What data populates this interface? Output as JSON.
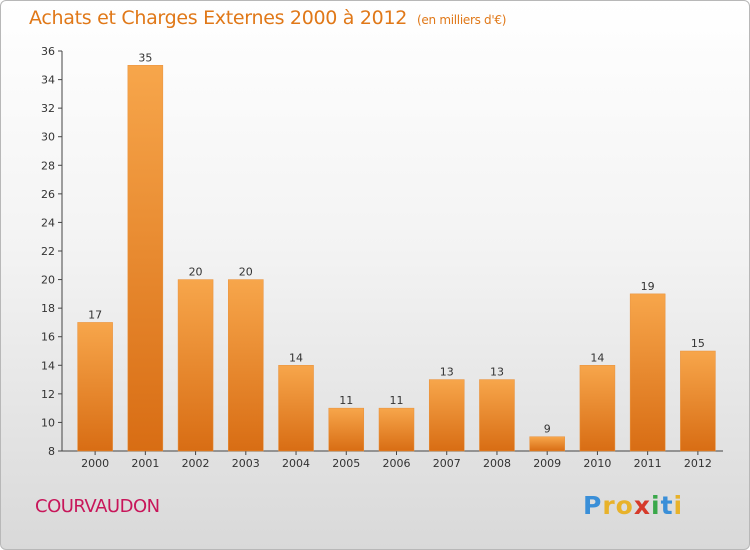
{
  "header": {
    "title": "Achats et Charges Externes 2000 à 2012",
    "unit": "(en milliers d'€)"
  },
  "footer": {
    "commune": "COURVAUDON",
    "logo_text": "Proxiti",
    "logo_letters": [
      {
        "char": "P",
        "color": "#3a8fd8"
      },
      {
        "char": "r",
        "color": "#e8b22a"
      },
      {
        "char": "o",
        "color": "#e8b22a"
      },
      {
        "char": "x",
        "color": "#d63a2a"
      },
      {
        "char": "i",
        "color": "#3aa84a"
      },
      {
        "char": "t",
        "color": "#3a8fd8"
      },
      {
        "char": "i",
        "color": "#e8b22a"
      }
    ]
  },
  "colors": {
    "bar_top": "#f7a64b",
    "bar_bottom": "#d86d14",
    "title": "#e07818",
    "commune": "#c8165a"
  },
  "chart_data": {
    "type": "bar",
    "title": "Achats et Charges Externes 2000 à 2012",
    "subtitle": "(en milliers d'€)",
    "xlabel": "",
    "ylabel": "",
    "categories": [
      "2000",
      "2001",
      "2002",
      "2003",
      "2004",
      "2005",
      "2006",
      "2007",
      "2008",
      "2009",
      "2010",
      "2011",
      "2012"
    ],
    "values": [
      17,
      35,
      20,
      20,
      14,
      11,
      11,
      13,
      13,
      9,
      14,
      19,
      15
    ],
    "ylim": [
      8,
      36
    ],
    "yticks": [
      8,
      10,
      12,
      14,
      16,
      18,
      20,
      22,
      24,
      26,
      28,
      30,
      32,
      34,
      36
    ],
    "grid": false,
    "legend": "none"
  }
}
